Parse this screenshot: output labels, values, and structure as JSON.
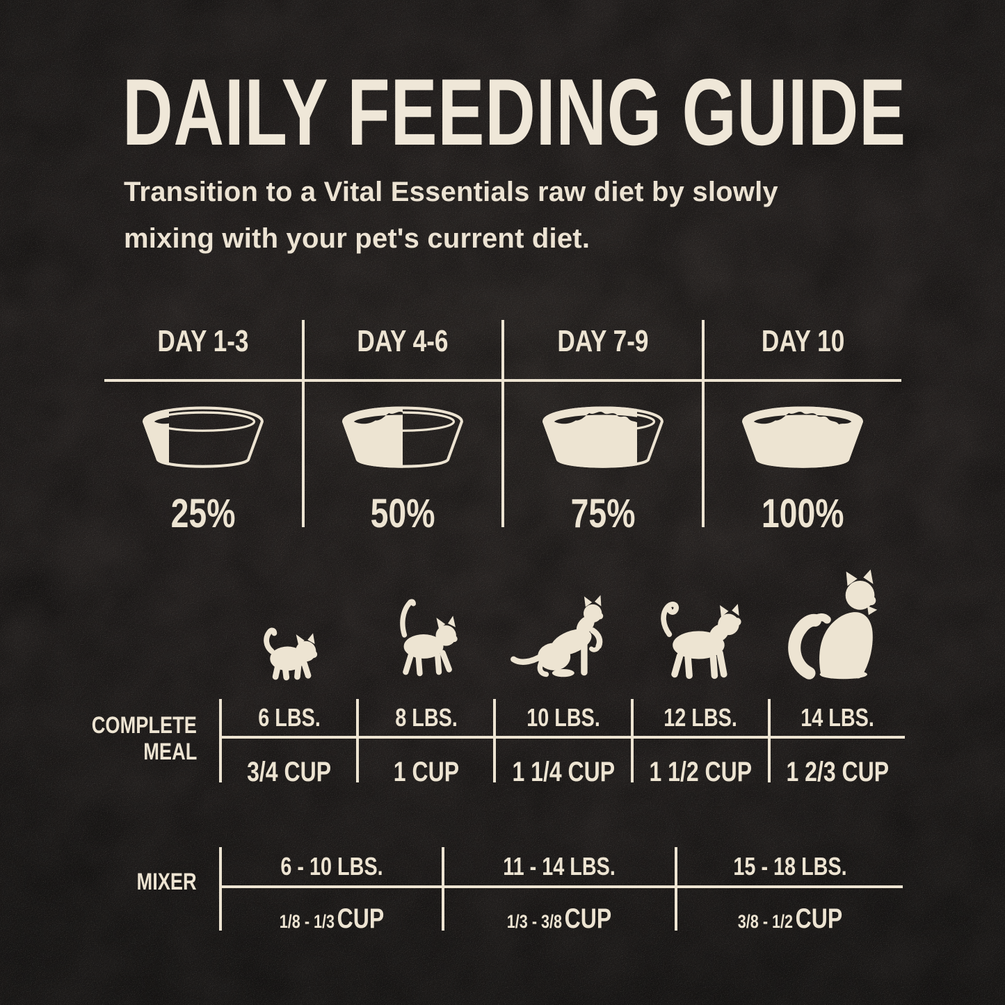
{
  "header": {
    "title": "DAILY FEEDING GUIDE",
    "subtitle_line1": "Transition to a Vital Essentials raw diet by slowly",
    "subtitle_line2": "mixing with your pet's current diet."
  },
  "colors": {
    "background": "#25211F",
    "cream": "#EDE4D2"
  },
  "icons": {
    "bowl": "food-bowl-icon",
    "cats": [
      "kitten-icon",
      "young-cat-icon",
      "adolescent-cat-icon",
      "adult-cat-icon",
      "large-fluffy-cat-icon"
    ]
  },
  "transition": {
    "columns": [
      {
        "day": "DAY 1-3",
        "percent": "25%",
        "fill": 25
      },
      {
        "day": "DAY 4-6",
        "percent": "50%",
        "fill": 50
      },
      {
        "day": "DAY 7-9",
        "percent": "75%",
        "fill": 75
      },
      {
        "day": "DAY 10",
        "percent": "100%",
        "fill": 100
      }
    ]
  },
  "complete_meal": {
    "label_line1": "COMPLETE",
    "label_line2": "MEAL",
    "columns": [
      {
        "weight": "6 LBS.",
        "amount": "3/4 CUP"
      },
      {
        "weight": "8 LBS.",
        "amount": "1 CUP"
      },
      {
        "weight": "10 LBS.",
        "amount": "1 1/4 CUP"
      },
      {
        "weight": "12 LBS.",
        "amount": "1 1/2 CUP"
      },
      {
        "weight": "14 LBS.",
        "amount": "1 2/3 CUP"
      }
    ]
  },
  "mixer": {
    "label": "MIXER",
    "columns": [
      {
        "weight": "6 - 10 LBS.",
        "range": "1/8 - 1/3",
        "unit": "CUP"
      },
      {
        "weight": "11 - 14 LBS.",
        "range": "1/3 - 3/8",
        "unit": "CUP"
      },
      {
        "weight": "15 - 18 LBS.",
        "range": "3/8 - 1/2",
        "unit": "CUP"
      }
    ]
  }
}
